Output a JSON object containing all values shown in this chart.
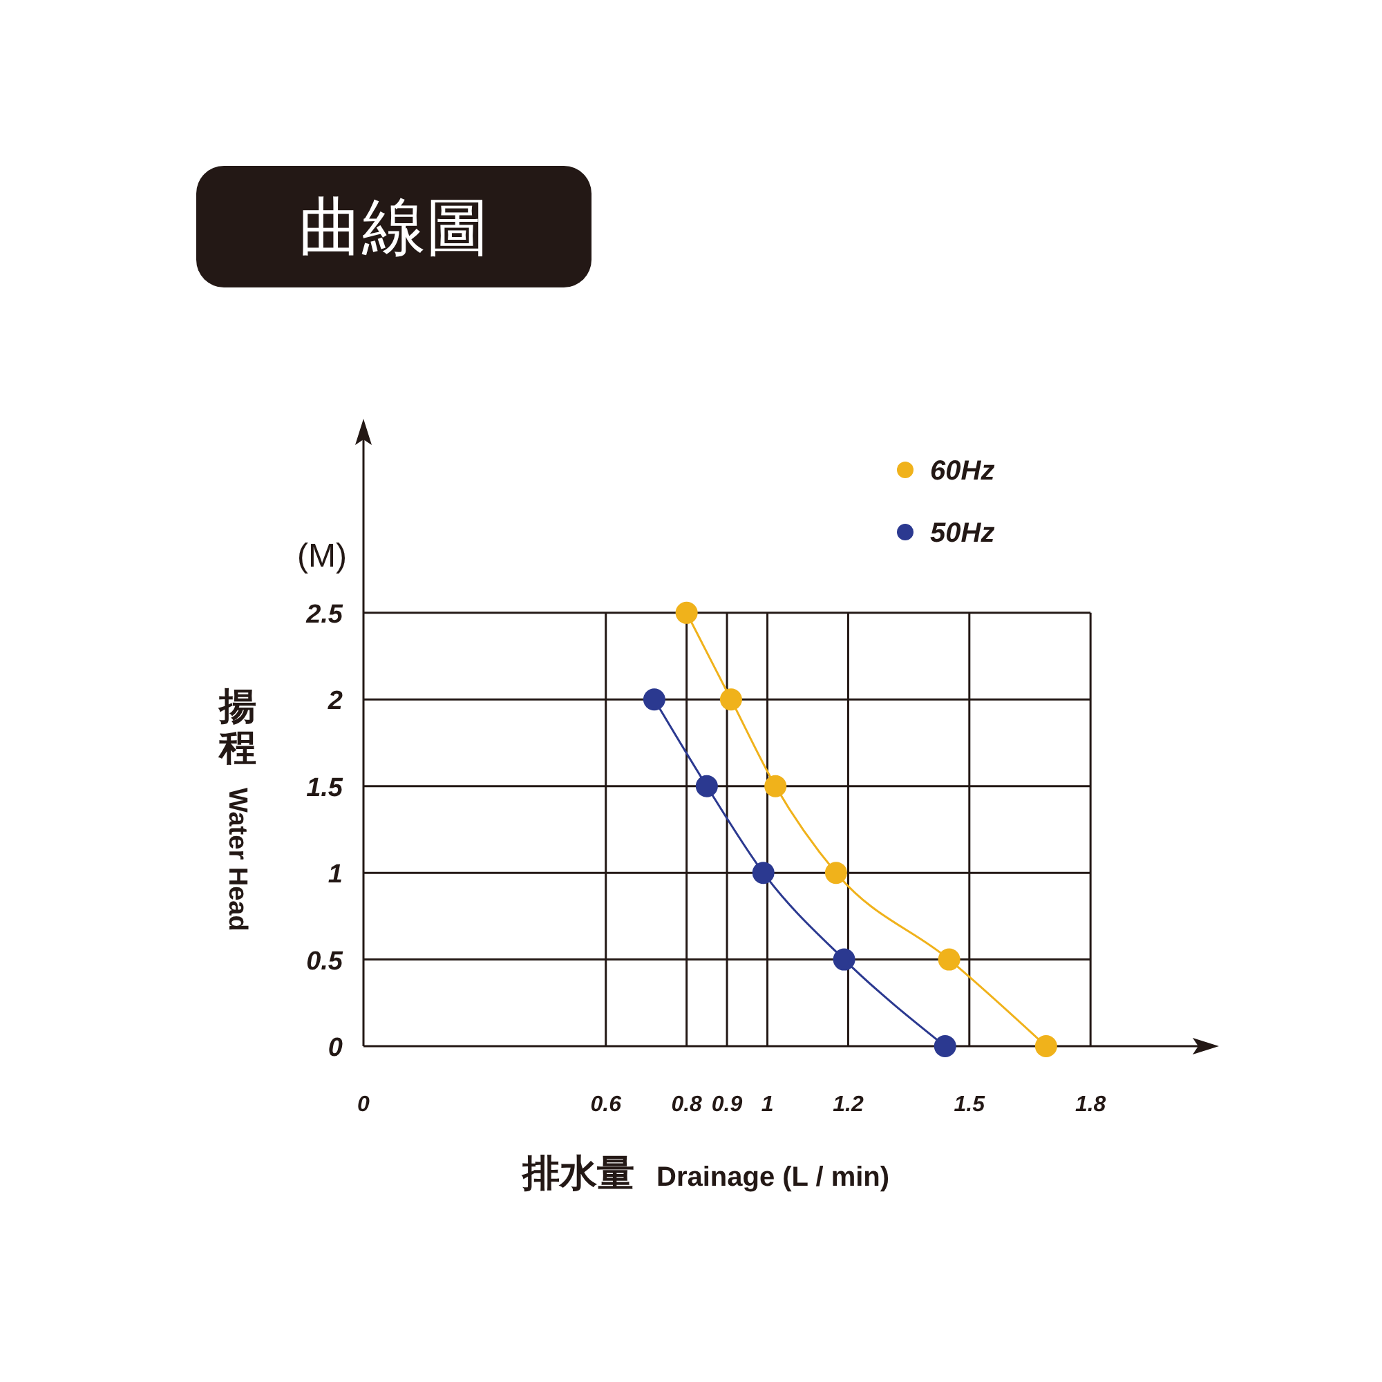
{
  "chart_data": {
    "type": "line",
    "title": "曲線圖",
    "xlabel": "排水量 Drainage (L / min)",
    "ylabel": "揚程 Water Head",
    "annotations": [
      "(M)"
    ],
    "xlim": [
      0,
      2.07
    ],
    "xticks": [
      0,
      0.6,
      0.8,
      0.9,
      1,
      1.2,
      1.5,
      1.8
    ],
    "ylim": [
      0,
      3.5
    ],
    "yticks": [
      0,
      0.5,
      1,
      1.5,
      2,
      2.5
    ],
    "grid": true,
    "legend": "top right",
    "marker": "circle",
    "line_style": "solid",
    "series": [
      {
        "name": "60Hz",
        "color": "#f0b21b",
        "x": [
          0.8,
          0.91,
          1.02,
          1.17,
          1.45,
          1.69
        ],
        "values": [
          2.5,
          2,
          1.5,
          1,
          0.5,
          0
        ]
      },
      {
        "name": "50Hz",
        "color": "#2b3990",
        "x": [
          0.72,
          0.85,
          0.99,
          1.19,
          1.44
        ],
        "values": [
          2,
          1.5,
          1,
          0.5,
          0
        ]
      }
    ]
  }
}
